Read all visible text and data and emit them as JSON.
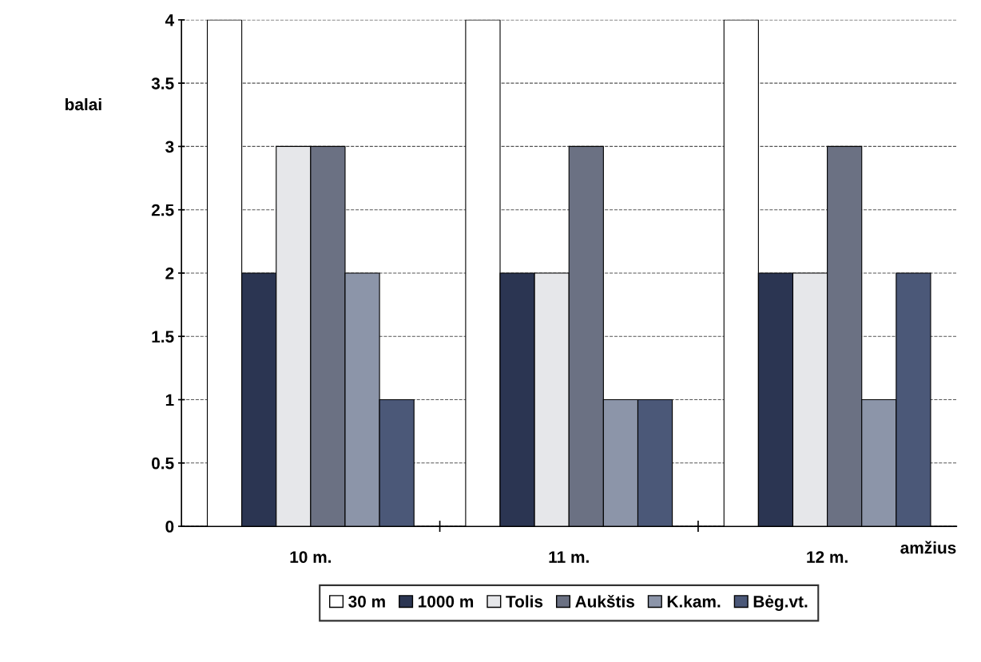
{
  "chart_data": {
    "type": "bar",
    "ylabel": "balai",
    "xlabel": "amžius",
    "categories": [
      "10 m.",
      "11 m.",
      "12 m."
    ],
    "series": [
      {
        "name": "30 m",
        "color": "#ffffff",
        "values": [
          4,
          4,
          4
        ]
      },
      {
        "name": "1000 m",
        "color": "#2b3552",
        "values": [
          2,
          2,
          2
        ]
      },
      {
        "name": "Tolis",
        "color": "#e6e7ea",
        "values": [
          3,
          2,
          2
        ]
      },
      {
        "name": "Aukštis",
        "color": "#6b7183",
        "values": [
          3,
          3,
          3
        ]
      },
      {
        "name": "K.kam.",
        "color": "#8c95a9",
        "values": [
          2,
          1,
          1
        ]
      },
      {
        "name": "Bėg.vt.",
        "color": "#4b5878",
        "values": [
          1,
          1,
          2
        ]
      }
    ],
    "ylim": [
      0,
      4
    ],
    "yticks": [
      0,
      0.5,
      1,
      1.5,
      2,
      2.5,
      3,
      3.5,
      4
    ],
    "grid": "y",
    "legend": "bottom"
  }
}
